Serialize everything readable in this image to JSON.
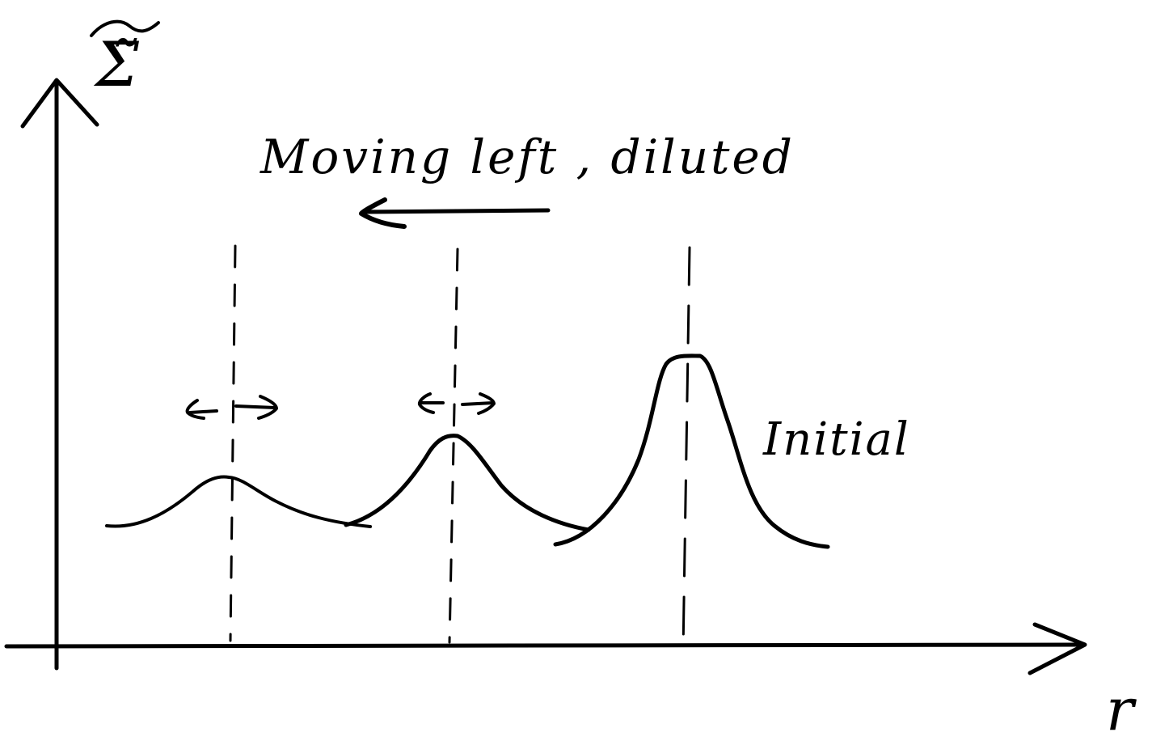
{
  "diagram": {
    "y_axis_label": "Σ̃",
    "x_axis_label": "r",
    "motion_label": "Moving left , diluted",
    "curve_label": "Initial"
  }
}
